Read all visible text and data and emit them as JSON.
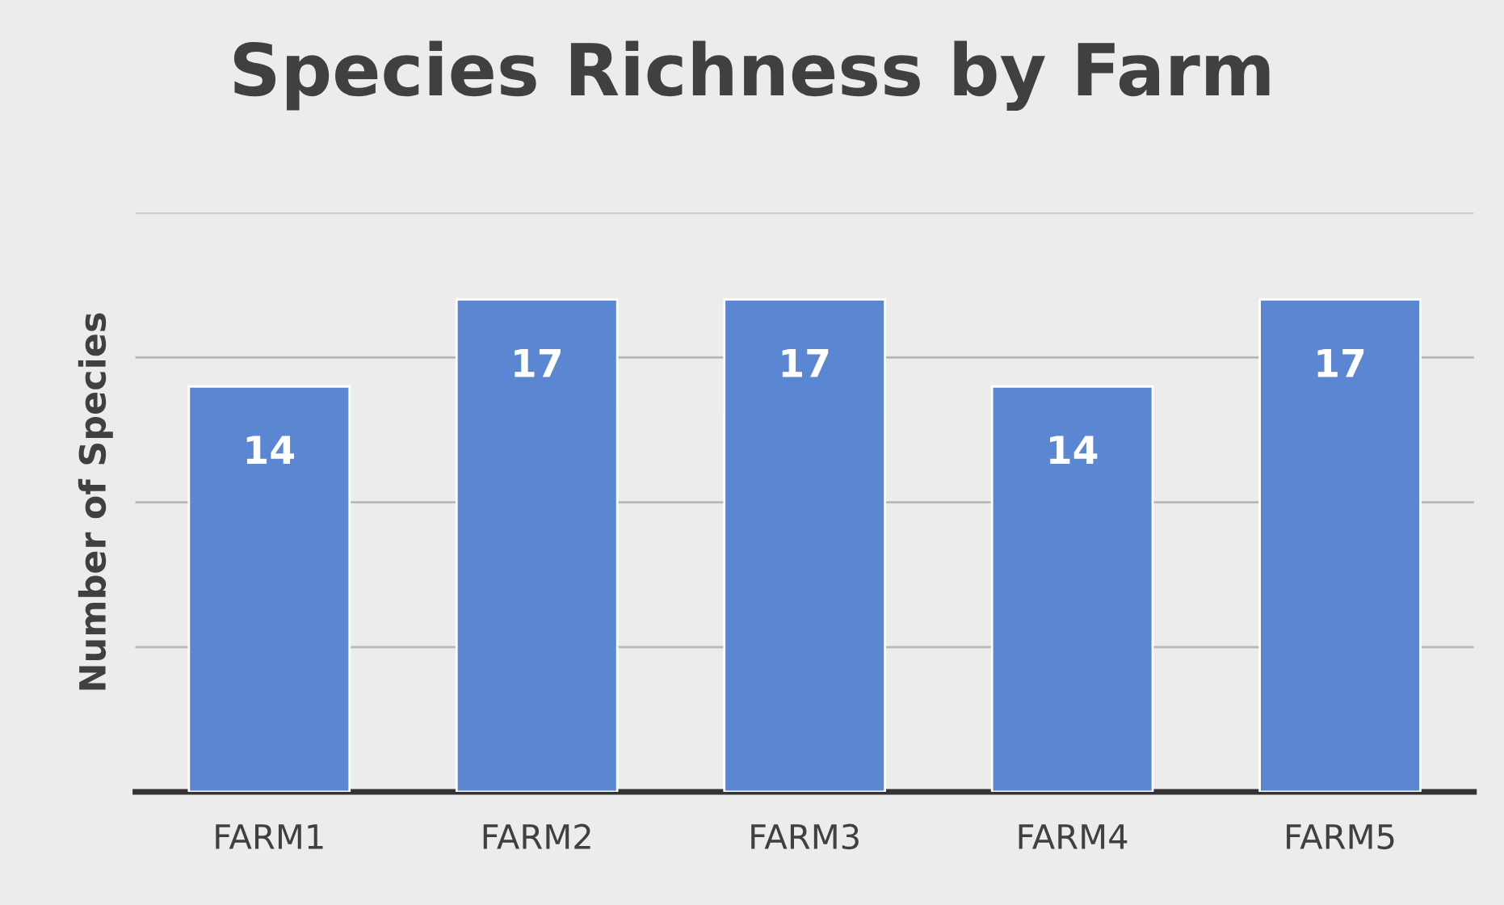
{
  "chart_data": {
    "type": "bar",
    "title": "Species Richness by Farm",
    "ylabel": "Number of Species",
    "categories": [
      "FARM1",
      "FARM2",
      "FARM3",
      "FARM4",
      "FARM5"
    ],
    "values": [
      14,
      17,
      17,
      14,
      17
    ],
    "color": "#5b86d1",
    "ylim": [
      0,
      20
    ],
    "yticks": [
      {
        "value": 0,
        "label": null
      },
      {
        "value": 5,
        "label": null
      },
      {
        "value": 10,
        "label": null
      },
      {
        "value": 15,
        "label": null
      },
      {
        "value": 20,
        "label": null
      }
    ],
    "tick_labels": "x",
    "grid": "y",
    "data_labels": true,
    "legend": false
  }
}
